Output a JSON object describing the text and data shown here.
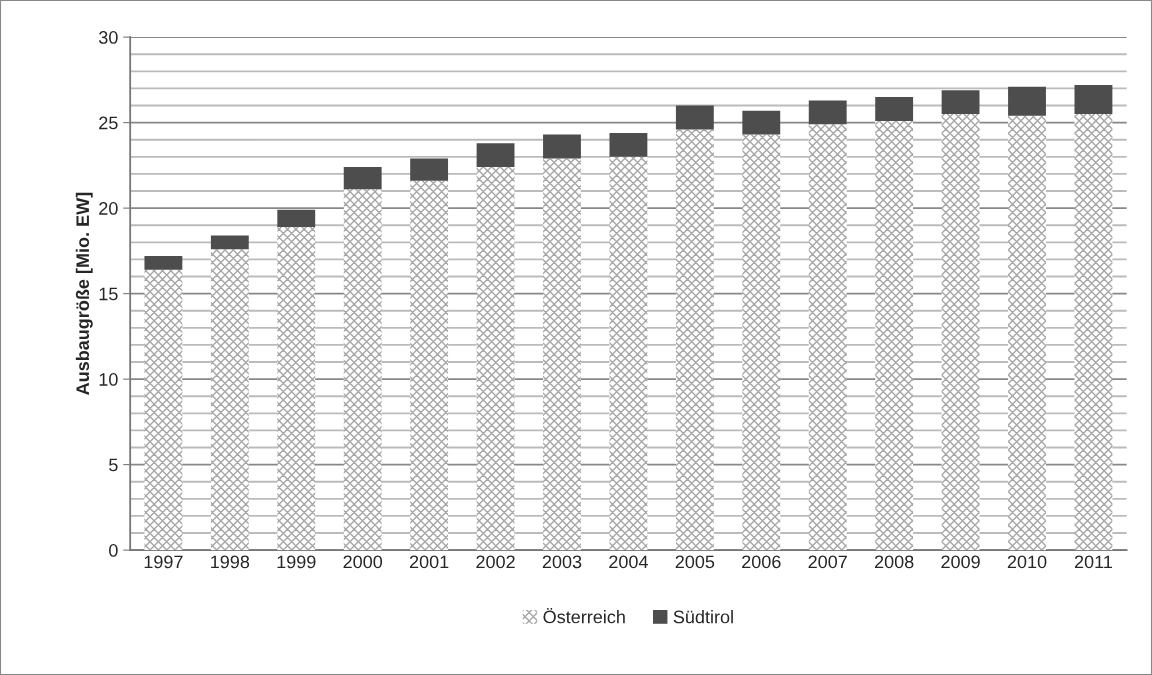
{
  "chart_data": {
    "type": "bar",
    "stacked": true,
    "ylabel": "Ausbaugröße [Mio. EW]",
    "categories": [
      "1997",
      "1998",
      "1999",
      "2000",
      "2001",
      "2002",
      "2003",
      "2004",
      "2005",
      "2006",
      "2007",
      "2008",
      "2009",
      "2010",
      "2011"
    ],
    "series": [
      {
        "name": "Österreich",
        "color": "#a6a6a6",
        "values": [
          16.4,
          17.6,
          18.9,
          21.1,
          21.6,
          22.4,
          22.9,
          23.0,
          24.6,
          24.3,
          24.9,
          25.1,
          25.5,
          25.4,
          25.5
        ]
      },
      {
        "name": "Südtirol",
        "color": "#4d4d4d",
        "values": [
          0.8,
          0.8,
          1.0,
          1.3,
          1.3,
          1.4,
          1.4,
          1.4,
          1.4,
          1.4,
          1.4,
          1.4,
          1.4,
          1.7,
          1.7
        ]
      }
    ],
    "ylim": [
      0,
      30
    ],
    "yticks": [
      0,
      {
        "value": 1,
        "label": null
      },
      {
        "value": 2,
        "label": null
      },
      {
        "value": 3,
        "label": null
      },
      {
        "value": 4,
        "label": null
      },
      5,
      {
        "value": 6,
        "label": null
      },
      {
        "value": 7,
        "label": null
      },
      {
        "value": 8,
        "label": null
      },
      {
        "value": 9,
        "label": null
      },
      10,
      {
        "value": 11,
        "label": null
      },
      {
        "value": 12,
        "label": null
      },
      {
        "value": 13,
        "label": null
      },
      {
        "value": 14,
        "label": null
      },
      15,
      {
        "value": 16,
        "label": null
      },
      {
        "value": 17,
        "label": null
      },
      {
        "value": 18,
        "label": null
      },
      {
        "value": 19,
        "label": null
      },
      20,
      {
        "value": 21,
        "label": null
      },
      {
        "value": 22,
        "label": null
      },
      {
        "value": 23,
        "label": null
      },
      {
        "value": 24,
        "label": null
      },
      25,
      {
        "value": 26,
        "label": null
      },
      {
        "value": 27,
        "label": null
      },
      {
        "value": 28,
        "label": null
      },
      {
        "value": 29,
        "label": null
      },
      30
    ],
    "grid": "y",
    "legend": "bottom"
  }
}
